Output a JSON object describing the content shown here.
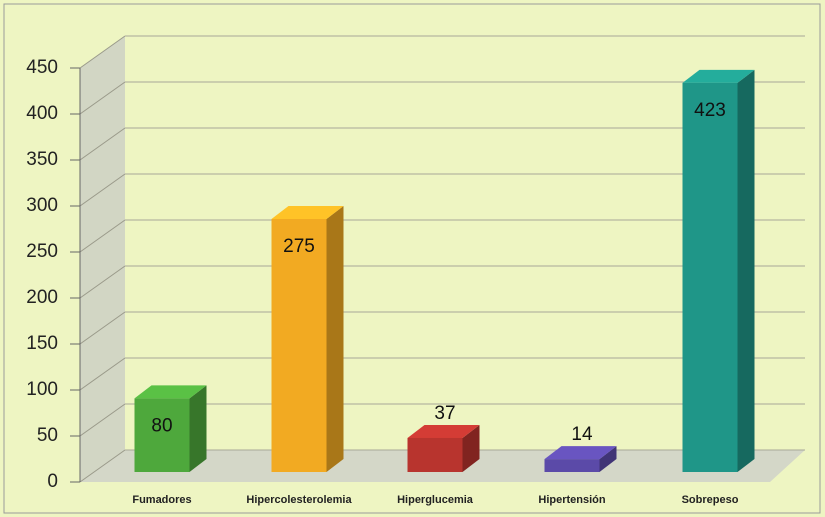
{
  "chart_data": {
    "type": "bar",
    "categories": [
      "Fumadores",
      "Hipercolesterolemia",
      "Hiperglucemia",
      "Hipertensión",
      "Sobrepeso"
    ],
    "values": [
      80,
      275,
      37,
      14,
      423
    ],
    "colors": [
      "#4ea83c",
      "#f2aa22",
      "#b8342e",
      "#5b4aa8",
      "#1f9688"
    ],
    "ylim": [
      0,
      450
    ],
    "yticks": [
      0,
      50,
      100,
      150,
      200,
      250,
      300,
      350,
      400,
      450
    ],
    "grid": true
  }
}
